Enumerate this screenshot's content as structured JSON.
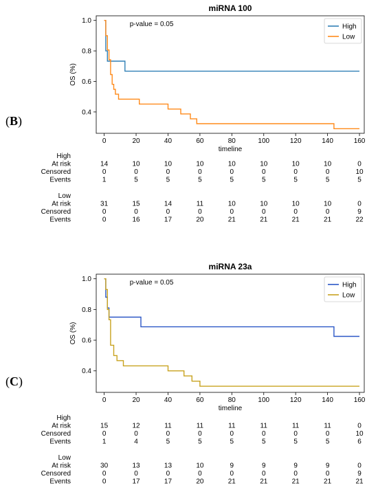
{
  "panels": [
    {
      "letter": "B",
      "chart_data": {
        "type": "line",
        "title": "miRNA 100",
        "xlabel": "timeline",
        "ylabel": "OS (%)",
        "xlim": [
          -5,
          163
        ],
        "ylim": [
          0.26,
          1.03
        ],
        "xticks": [
          0,
          20,
          40,
          60,
          80,
          100,
          120,
          140,
          160
        ],
        "yticks": [
          0.4,
          0.6,
          0.8,
          1.0
        ],
        "ytick_labels": [
          "0.4",
          "0.6",
          "0.8",
          "1.0"
        ],
        "annotation": "p-value = 0.05",
        "legend_position": "top-right",
        "grid": false,
        "series": [
          {
            "name": "High",
            "color": "#2f7fb5",
            "x": [
              0,
              1,
              1,
              2,
              2,
              13,
              13,
              160
            ],
            "y": [
              1.0,
              1.0,
              0.8,
              0.8,
              0.733,
              0.733,
              0.667,
              0.667
            ]
          },
          {
            "name": "Low",
            "color": "#ff8a1a",
            "x": [
              0,
              1,
              1,
              2,
              2,
              3,
              3,
              4,
              4,
              5,
              5,
              6,
              6,
              7,
              7,
              9,
              9,
              22,
              22,
              40,
              40,
              48,
              48,
              54,
              54,
              58,
              58,
              62,
              62,
              144,
              144,
              160
            ],
            "y": [
              1.0,
              1.0,
              0.9,
              0.9,
              0.806,
              0.806,
              0.742,
              0.742,
              0.645,
              0.645,
              0.581,
              0.581,
              0.548,
              0.548,
              0.516,
              0.516,
              0.484,
              0.484,
              0.452,
              0.452,
              0.419,
              0.419,
              0.387,
              0.387,
              0.355,
              0.355,
              0.323,
              0.323,
              0.323,
              0.323,
              0.29,
              0.29
            ]
          }
        ]
      },
      "risk_table": {
        "groups": [
          {
            "name": "High",
            "rows": [
              {
                "label": "At risk",
                "values": [
                  "14",
                  "10",
                  "10",
                  "10",
                  "10",
                  "10",
                  "10",
                  "10",
                  "0"
                ]
              },
              {
                "label": "Censored",
                "values": [
                  "0",
                  "0",
                  "0",
                  "0",
                  "0",
                  "0",
                  "0",
                  "0",
                  "10"
                ]
              },
              {
                "label": "Events",
                "values": [
                  "1",
                  "5",
                  "5",
                  "5",
                  "5",
                  "5",
                  "5",
                  "5",
                  "5"
                ]
              }
            ]
          },
          {
            "name": "Low",
            "rows": [
              {
                "label": "At risk",
                "values": [
                  "31",
                  "15",
                  "14",
                  "11",
                  "10",
                  "10",
                  "10",
                  "10",
                  "0"
                ]
              },
              {
                "label": "Censored",
                "values": [
                  "0",
                  "0",
                  "0",
                  "0",
                  "0",
                  "0",
                  "0",
                  "0",
                  "9"
                ]
              },
              {
                "label": "Events",
                "values": [
                  "0",
                  "16",
                  "17",
                  "20",
                  "21",
                  "21",
                  "21",
                  "21",
                  "22"
                ]
              }
            ]
          }
        ]
      }
    },
    {
      "letter": "C",
      "chart_data": {
        "type": "line",
        "title": "miRNA 23a",
        "xlabel": "timeline",
        "ylabel": "OS (%)",
        "xlim": [
          -5,
          163
        ],
        "ylim": [
          0.26,
          1.03
        ],
        "xticks": [
          0,
          20,
          40,
          60,
          80,
          100,
          120,
          140,
          160
        ],
        "yticks": [
          0.4,
          0.6,
          0.8,
          1.0
        ],
        "ytick_labels": [
          "0.4",
          "0.6",
          "0.8",
          "1.0"
        ],
        "annotation": "p-value = 0.05",
        "legend_position": "top-right",
        "grid": false,
        "series": [
          {
            "name": "High",
            "color": "#2a56c6",
            "x": [
              0,
              1,
              1,
              2,
              2,
              3,
              3,
              23,
              23,
              144,
              144,
              160
            ],
            "y": [
              1.0,
              1.0,
              0.88,
              0.88,
              0.81,
              0.81,
              0.75,
              0.75,
              0.687,
              0.687,
              0.625,
              0.625
            ]
          },
          {
            "name": "Low",
            "color": "#c8a21e",
            "x": [
              0,
              1,
              1,
              2,
              2,
              3,
              3,
              4,
              4,
              6,
              6,
              8,
              8,
              12,
              12,
              40,
              40,
              50,
              50,
              55,
              55,
              60,
              60,
              63,
              63,
              160
            ],
            "y": [
              1.0,
              1.0,
              0.93,
              0.93,
              0.8,
              0.8,
              0.733,
              0.733,
              0.567,
              0.567,
              0.5,
              0.5,
              0.467,
              0.467,
              0.433,
              0.433,
              0.4,
              0.4,
              0.367,
              0.367,
              0.333,
              0.333,
              0.3,
              0.3,
              0.3,
              0.3
            ]
          }
        ]
      },
      "risk_table": {
        "groups": [
          {
            "name": "High",
            "rows": [
              {
                "label": "At risk",
                "values": [
                  "15",
                  "12",
                  "11",
                  "11",
                  "11",
                  "11",
                  "11",
                  "11",
                  "0"
                ]
              },
              {
                "label": "Censored",
                "values": [
                  "0",
                  "0",
                  "0",
                  "0",
                  "0",
                  "0",
                  "0",
                  "0",
                  "10"
                ]
              },
              {
                "label": "Events",
                "values": [
                  "1",
                  "4",
                  "5",
                  "5",
                  "5",
                  "5",
                  "5",
                  "5",
                  "6"
                ]
              }
            ]
          },
          {
            "name": "Low",
            "rows": [
              {
                "label": "At risk",
                "values": [
                  "30",
                  "13",
                  "13",
                  "10",
                  "9",
                  "9",
                  "9",
                  "9",
                  "0"
                ]
              },
              {
                "label": "Censored",
                "values": [
                  "0",
                  "0",
                  "0",
                  "0",
                  "0",
                  "0",
                  "0",
                  "0",
                  "9"
                ]
              },
              {
                "label": "Events",
                "values": [
                  "0",
                  "17",
                  "17",
                  "20",
                  "21",
                  "21",
                  "21",
                  "21",
                  "21"
                ]
              }
            ]
          }
        ]
      }
    }
  ]
}
